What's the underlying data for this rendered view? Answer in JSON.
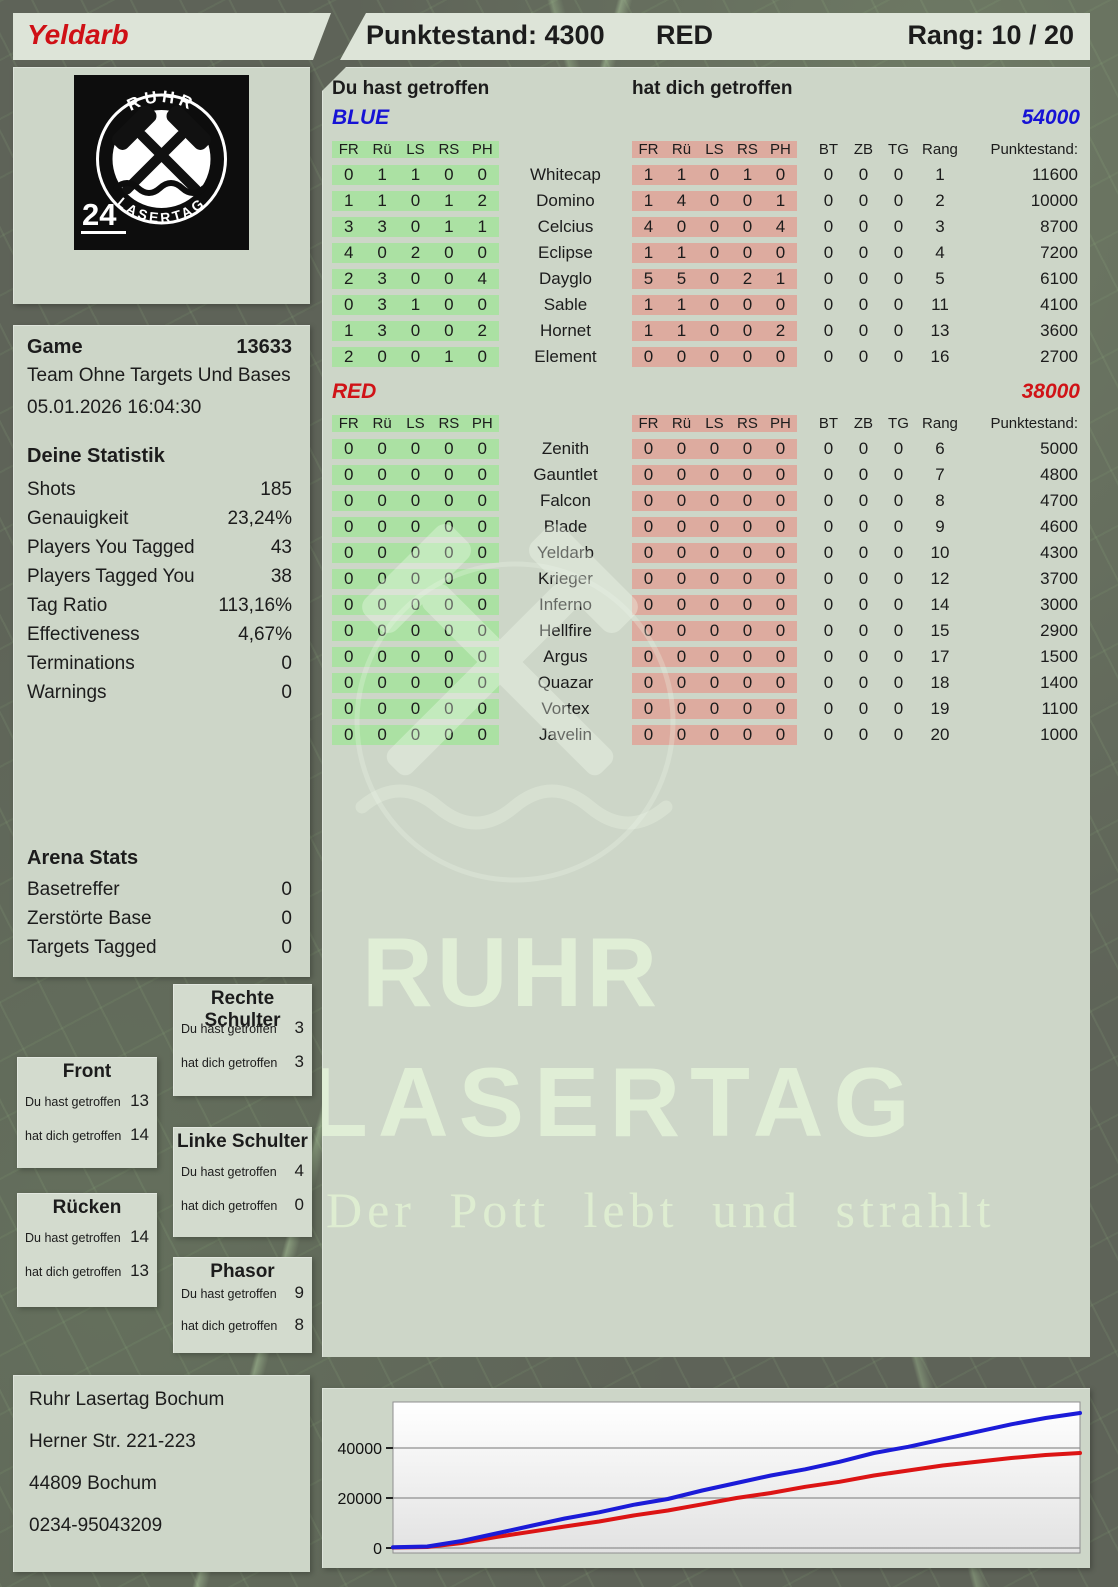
{
  "header": {
    "player_name": "Yeldarb",
    "punktestand": "Punktestand: 4300",
    "team": "RED",
    "rank": "Rang: 10 / 20"
  },
  "logo": {
    "arc_top": "RUHR",
    "arc_bottom": "LASERTAG",
    "badge": "24"
  },
  "game_panel": {
    "game_label": "Game",
    "game_id": "13633",
    "mode": "Team Ohne Targets Und Bases",
    "datetime": "05.01.2026 16:04:30",
    "stats_title": "Deine Statistik",
    "stats": [
      [
        "Shots",
        "185"
      ],
      [
        "Genauigkeit",
        "23,24%"
      ],
      [
        "Players You Tagged",
        "43"
      ],
      [
        "Players Tagged You",
        "38"
      ],
      [
        "Tag Ratio",
        "113,16%"
      ],
      [
        "Effectiveness",
        "4,67%"
      ],
      [
        "Terminations",
        "0"
      ],
      [
        "Warnings",
        "0"
      ]
    ],
    "arena_title": "Arena Stats",
    "arena_stats": [
      [
        "Basetreffer",
        "0"
      ],
      [
        "Zerstörte Base",
        "0"
      ],
      [
        "Targets Tagged",
        "0"
      ]
    ]
  },
  "hit_tables": {
    "given_header": "Du hast getroffen",
    "taken_header": "hat dich getroffen",
    "hit_columns": [
      "FR",
      "Rü",
      "LS",
      "RS",
      "PH"
    ],
    "right_columns": [
      "BT",
      "ZB",
      "TG",
      "Rang",
      "Punktestand:"
    ],
    "teams": [
      {
        "name": "BLUE",
        "color": "#1612d5",
        "score": "54000",
        "rows": [
          {
            "given": [
              "0",
              "1",
              "1",
              "0",
              "0"
            ],
            "player": "Whitecap",
            "taken": [
              "1",
              "1",
              "0",
              "1",
              "0"
            ],
            "bt": "0",
            "zb": "0",
            "tg": "0",
            "rang": "1",
            "punktestand": "11600"
          },
          {
            "given": [
              "1",
              "1",
              "0",
              "1",
              "2"
            ],
            "player": "Domino",
            "taken": [
              "1",
              "4",
              "0",
              "0",
              "1"
            ],
            "bt": "0",
            "zb": "0",
            "tg": "0",
            "rang": "2",
            "punktestand": "10000"
          },
          {
            "given": [
              "3",
              "3",
              "0",
              "1",
              "1"
            ],
            "player": "Celcius",
            "taken": [
              "4",
              "0",
              "0",
              "0",
              "4"
            ],
            "bt": "0",
            "zb": "0",
            "tg": "0",
            "rang": "3",
            "punktestand": "8700"
          },
          {
            "given": [
              "4",
              "0",
              "2",
              "0",
              "0"
            ],
            "player": "Eclipse",
            "taken": [
              "1",
              "1",
              "0",
              "0",
              "0"
            ],
            "bt": "0",
            "zb": "0",
            "tg": "0",
            "rang": "4",
            "punktestand": "7200"
          },
          {
            "given": [
              "2",
              "3",
              "0",
              "0",
              "4"
            ],
            "player": "Dayglo",
            "taken": [
              "5",
              "5",
              "0",
              "2",
              "1"
            ],
            "bt": "0",
            "zb": "0",
            "tg": "0",
            "rang": "5",
            "punktestand": "6100"
          },
          {
            "given": [
              "0",
              "3",
              "1",
              "0",
              "0"
            ],
            "player": "Sable",
            "taken": [
              "1",
              "1",
              "0",
              "0",
              "0"
            ],
            "bt": "0",
            "zb": "0",
            "tg": "0",
            "rang": "11",
            "punktestand": "4100"
          },
          {
            "given": [
              "1",
              "3",
              "0",
              "0",
              "2"
            ],
            "player": "Hornet",
            "taken": [
              "1",
              "1",
              "0",
              "0",
              "2"
            ],
            "bt": "0",
            "zb": "0",
            "tg": "0",
            "rang": "13",
            "punktestand": "3600"
          },
          {
            "given": [
              "2",
              "0",
              "0",
              "1",
              "0"
            ],
            "player": "Element",
            "taken": [
              "0",
              "0",
              "0",
              "0",
              "0"
            ],
            "bt": "0",
            "zb": "0",
            "tg": "0",
            "rang": "16",
            "punktestand": "2700"
          }
        ]
      },
      {
        "name": "RED",
        "color": "#d01317",
        "score": "38000",
        "rows": [
          {
            "given": [
              "0",
              "0",
              "0",
              "0",
              "0"
            ],
            "player": "Zenith",
            "taken": [
              "0",
              "0",
              "0",
              "0",
              "0"
            ],
            "bt": "0",
            "zb": "0",
            "tg": "0",
            "rang": "6",
            "punktestand": "5000"
          },
          {
            "given": [
              "0",
              "0",
              "0",
              "0",
              "0"
            ],
            "player": "Gauntlet",
            "taken": [
              "0",
              "0",
              "0",
              "0",
              "0"
            ],
            "bt": "0",
            "zb": "0",
            "tg": "0",
            "rang": "7",
            "punktestand": "4800"
          },
          {
            "given": [
              "0",
              "0",
              "0",
              "0",
              "0"
            ],
            "player": "Falcon",
            "taken": [
              "0",
              "0",
              "0",
              "0",
              "0"
            ],
            "bt": "0",
            "zb": "0",
            "tg": "0",
            "rang": "8",
            "punktestand": "4700"
          },
          {
            "given": [
              "0",
              "0",
              "0",
              "0",
              "0"
            ],
            "player": "Blade",
            "taken": [
              "0",
              "0",
              "0",
              "0",
              "0"
            ],
            "bt": "0",
            "zb": "0",
            "tg": "0",
            "rang": "9",
            "punktestand": "4600"
          },
          {
            "given": [
              "0",
              "0",
              "0",
              "0",
              "0"
            ],
            "player": "Yeldarb",
            "taken": [
              "0",
              "0",
              "0",
              "0",
              "0"
            ],
            "bt": "0",
            "zb": "0",
            "tg": "0",
            "rang": "10",
            "punktestand": "4300"
          },
          {
            "given": [
              "0",
              "0",
              "0",
              "0",
              "0"
            ],
            "player": "Krieger",
            "taken": [
              "0",
              "0",
              "0",
              "0",
              "0"
            ],
            "bt": "0",
            "zb": "0",
            "tg": "0",
            "rang": "12",
            "punktestand": "3700"
          },
          {
            "given": [
              "0",
              "0",
              "0",
              "0",
              "0"
            ],
            "player": "Inferno",
            "taken": [
              "0",
              "0",
              "0",
              "0",
              "0"
            ],
            "bt": "0",
            "zb": "0",
            "tg": "0",
            "rang": "14",
            "punktestand": "3000"
          },
          {
            "given": [
              "0",
              "0",
              "0",
              "0",
              "0"
            ],
            "player": "Hellfire",
            "taken": [
              "0",
              "0",
              "0",
              "0",
              "0"
            ],
            "bt": "0",
            "zb": "0",
            "tg": "0",
            "rang": "15",
            "punktestand": "2900"
          },
          {
            "given": [
              "0",
              "0",
              "0",
              "0",
              "0"
            ],
            "player": "Argus",
            "taken": [
              "0",
              "0",
              "0",
              "0",
              "0"
            ],
            "bt": "0",
            "zb": "0",
            "tg": "0",
            "rang": "17",
            "punktestand": "1500"
          },
          {
            "given": [
              "0",
              "0",
              "0",
              "0",
              "0"
            ],
            "player": "Quazar",
            "taken": [
              "0",
              "0",
              "0",
              "0",
              "0"
            ],
            "bt": "0",
            "zb": "0",
            "tg": "0",
            "rang": "18",
            "punktestand": "1400"
          },
          {
            "given": [
              "0",
              "0",
              "0",
              "0",
              "0"
            ],
            "player": "Vortex",
            "taken": [
              "0",
              "0",
              "0",
              "0",
              "0"
            ],
            "bt": "0",
            "zb": "0",
            "tg": "0",
            "rang": "19",
            "punktestand": "1100"
          },
          {
            "given": [
              "0",
              "0",
              "0",
              "0",
              "0"
            ],
            "player": "Javelin",
            "taken": [
              "0",
              "0",
              "0",
              "0",
              "0"
            ],
            "bt": "0",
            "zb": "0",
            "tg": "0",
            "rang": "20",
            "punktestand": "1000"
          }
        ]
      }
    ]
  },
  "hit_box_labels": {
    "given": "Du hast getroffen",
    "taken": "hat dich getroffen"
  },
  "hit_boxes": [
    {
      "title": "Rechte Schulter",
      "given": "3",
      "taken": "3"
    },
    {
      "title": "Front",
      "given": "13",
      "taken": "14"
    },
    {
      "title": "Linke Schulter",
      "given": "4",
      "taken": "0"
    },
    {
      "title": "Rücken",
      "given": "14",
      "taken": "13"
    },
    {
      "title": "Phasor",
      "given": "9",
      "taken": "8"
    }
  ],
  "watermark": {
    "line1": "RUHR",
    "line2": "LASERTAG",
    "slogan": "Der Pott lebt und strahlt"
  },
  "address": [
    "Ruhr Lasertag Bochum",
    "Herner Str. 221-223",
    "44809 Bochum",
    "0234-95043209"
  ],
  "colors": {
    "accent_blue": "#1612d5",
    "accent_red": "#d01317",
    "given_block_green": "#abe1a3",
    "taken_block_red": "#ddab9f"
  },
  "chart_data": {
    "type": "line",
    "title": "",
    "xlabel": "",
    "ylabel": "",
    "y_ticks": [
      0,
      20000,
      40000
    ],
    "ylim": [
      0,
      58400
    ],
    "grid": true,
    "legend_position": "none",
    "series": [
      {
        "name": "BLUE",
        "color": "#1b1bd8",
        "values": [
          300,
          600,
          2800,
          5800,
          8800,
          11800,
          14300,
          17300,
          19600,
          23000,
          26000,
          29000,
          31500,
          34500,
          38000,
          40500,
          43500,
          46500,
          49500,
          52000,
          54000
        ]
      },
      {
        "name": "RED",
        "color": "#dc1414",
        "values": [
          200,
          400,
          2000,
          4400,
          6500,
          8600,
          10600,
          13000,
          15000,
          17500,
          20000,
          22000,
          24500,
          26500,
          29000,
          31000,
          33000,
          34500,
          36000,
          37200,
          38000
        ]
      }
    ]
  }
}
